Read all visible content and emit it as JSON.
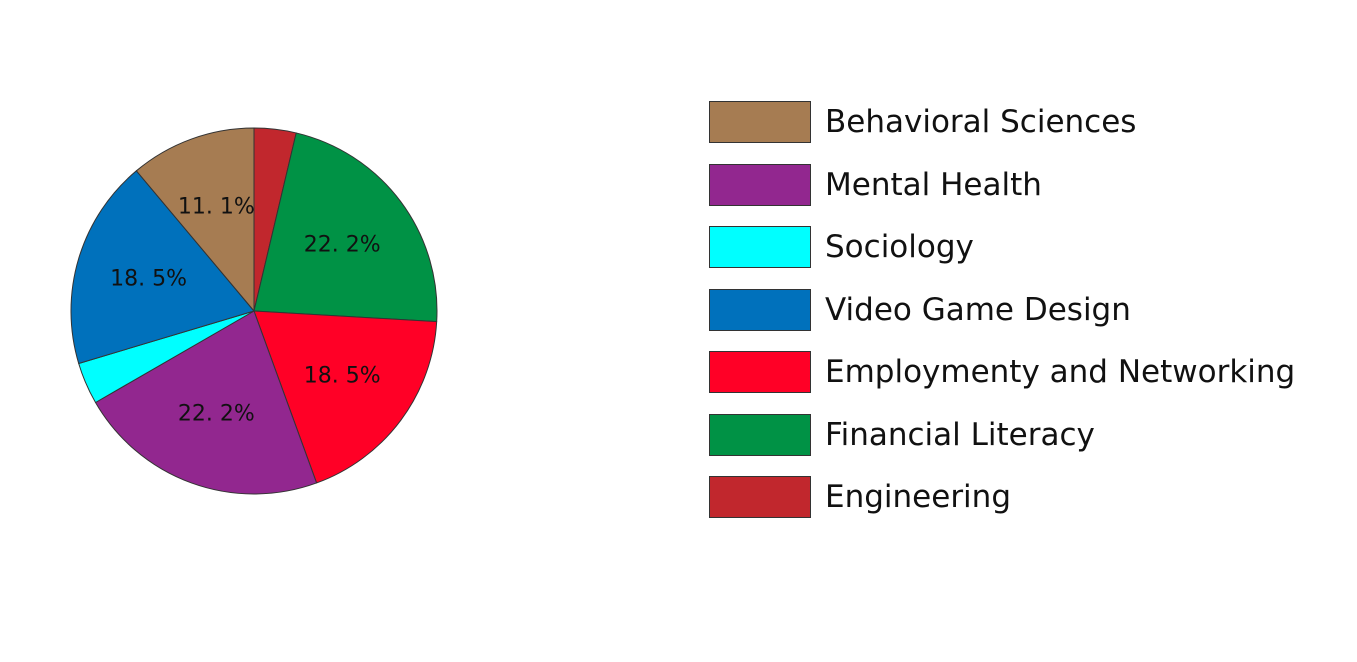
{
  "chart_data": {
    "type": "pie",
    "title": "",
    "slices": [
      {
        "name": "Behavioral Sciences",
        "value": 11.1,
        "label": "11. 1%",
        "color": "#a67c52"
      },
      {
        "name": "Mental Health",
        "value": 22.2,
        "label": "22. 2%",
        "color": "#92278f"
      },
      {
        "name": "Sociology",
        "value": 3.7,
        "label": "",
        "color": "#00ffff"
      },
      {
        "name": "Video Game Design",
        "value": 18.5,
        "label": "18. 5%",
        "color": "#0071bc"
      },
      {
        "name": "Employmenty and Networking",
        "value": 18.5,
        "label": "18. 5%",
        "color": "#ff0026"
      },
      {
        "name": "Financial Literacy",
        "value": 22.2,
        "label": "22. 2%",
        "color": "#009245"
      },
      {
        "name": "Engineering",
        "value": 3.7,
        "label": "",
        "color": "#c1272d"
      }
    ],
    "clockwise_order_from_top": [
      "Engineering",
      "Financial Literacy",
      "Employmenty and Networking",
      "Mental Health",
      "Sociology",
      "Video Game Design",
      "Behavioral Sciences"
    ],
    "legend_position": "right"
  }
}
